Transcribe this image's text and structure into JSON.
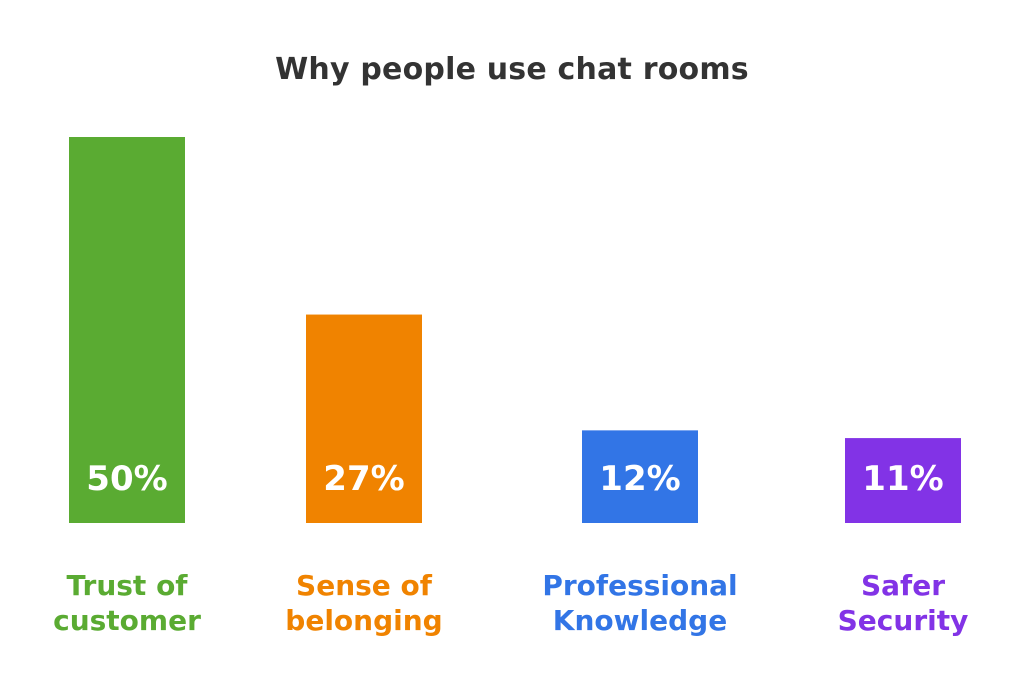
{
  "chart_data": {
    "type": "bar",
    "title": "Why people use chat rooms",
    "categories": [
      "Trust of customer",
      "Sense of belonging",
      "Professional Knowledge",
      "Safer Security"
    ],
    "category_lines": [
      [
        "Trust of",
        "customer"
      ],
      [
        "Sense of",
        "belonging"
      ],
      [
        "Professional",
        "Knowledge"
      ],
      [
        "Safer",
        "Security"
      ]
    ],
    "values": [
      50,
      27,
      12,
      11
    ],
    "value_labels": [
      "50%",
      "27%",
      "12%",
      "11%"
    ],
    "colors": [
      "#5aab32",
      "#f08300",
      "#3275e6",
      "#8233e6"
    ],
    "ylim": [
      0,
      50
    ],
    "grid": false,
    "legend": "none"
  }
}
